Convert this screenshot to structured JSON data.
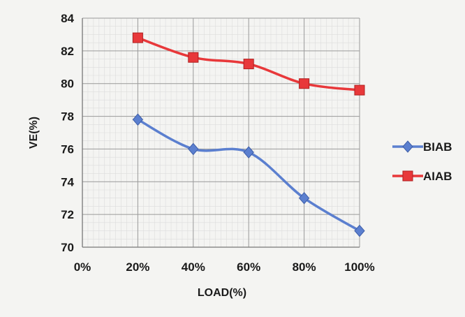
{
  "chart_data": {
    "type": "line",
    "title": "",
    "xlabel": "LOAD(%)",
    "ylabel": "VE(%)",
    "categories": [
      "0%",
      "20%",
      "40%",
      "60%",
      "80%",
      "100%"
    ],
    "x": [
      0,
      20,
      40,
      60,
      80,
      100
    ],
    "ylim": [
      70,
      84
    ],
    "yticks": [
      70,
      72,
      74,
      76,
      78,
      80,
      82,
      84
    ],
    "grid": true,
    "legend_position": "right",
    "series": [
      {
        "name": "BIAB",
        "color": "#5b7fcf",
        "marker": "diamond",
        "x": [
          20,
          40,
          60,
          80,
          100
        ],
        "values": [
          77.8,
          76.0,
          75.8,
          73.0,
          71.0
        ]
      },
      {
        "name": "AIAB",
        "color": "#e8383a",
        "marker": "square",
        "x": [
          20,
          40,
          60,
          80,
          100
        ],
        "values": [
          82.8,
          81.6,
          81.2,
          80.0,
          79.6
        ]
      }
    ]
  }
}
